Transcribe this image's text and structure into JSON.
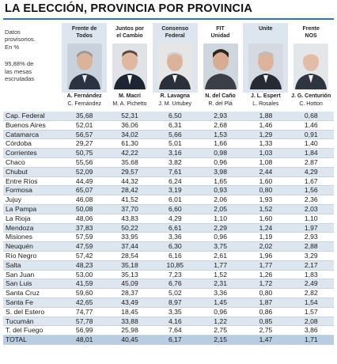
{
  "title": "LA ELECCIÓN, PROVINCIA POR PROVINCIA",
  "intro": {
    "line1": "Datos",
    "line2": "provisorios.",
    "line3": "En %",
    "line4": "95,88% de",
    "line5": "las mesas",
    "line6": "escrutadas"
  },
  "parties": [
    {
      "line1": "Frente de",
      "line2": "Todos",
      "president": "A. Fernández",
      "vice": "C. Fernández",
      "photo": "portrait-fernandez"
    },
    {
      "line1": "Juntos por",
      "line2": "el Cambio",
      "president": "M. Macri",
      "vice": "M. A. Pichetto",
      "photo": "portrait-macri"
    },
    {
      "line1": "Consenso",
      "line2": "Federal",
      "president": "R. Lavagna",
      "vice": "J. M. Urtubey",
      "photo": "portrait-lavagna"
    },
    {
      "line1": "FIT",
      "line2": "Unidad",
      "president": "N. del Caño",
      "vice": "R. del Plá",
      "photo": "portrait-delcano"
    },
    {
      "line1": "Unite",
      "line2": "",
      "president": "J. L. Espert",
      "vice": "L. Rosales",
      "photo": "portrait-espert"
    },
    {
      "line1": "Frente",
      "line2": "NOS",
      "president": "J. G. Centurión",
      "vice": "C. Hotton",
      "photo": "portrait-centurion"
    }
  ],
  "rows": [
    {
      "province": "Cap. Federal",
      "values": [
        "35,68",
        "52,31",
        "6,50",
        "2,93",
        "1,88",
        "0,68"
      ]
    },
    {
      "province": "Buenos Aires",
      "values": [
        "52,01",
        "36,06",
        "6,31",
        "2,68",
        "1,46",
        "1,46"
      ]
    },
    {
      "province": "Catamarca",
      "values": [
        "56,57",
        "34,02",
        "5,66",
        "1,53",
        "1,29",
        "0,91"
      ]
    },
    {
      "province": "Córdoba",
      "values": [
        "29,27",
        "61,30",
        "5,01",
        "1,66",
        "1,33",
        "1,40"
      ]
    },
    {
      "province": "Corrientes",
      "values": [
        "50,75",
        "42,22",
        "3,16",
        "0,98",
        "1,03",
        "1,84"
      ]
    },
    {
      "province": "Chaco",
      "values": [
        "55,56",
        "35,68",
        "3,82",
        "0,96",
        "1,08",
        "2,87"
      ]
    },
    {
      "province": "Chubut",
      "values": [
        "52,09",
        "29,57",
        "7,61",
        "3,98",
        "2,44",
        "4,29"
      ]
    },
    {
      "province": "Entre Ríos",
      "values": [
        "44,49",
        "44,32",
        "6,24",
        "1,65",
        "1,60",
        "1,67"
      ]
    },
    {
      "province": "Formosa",
      "values": [
        "65,07",
        "28,42",
        "3,19",
        "0,93",
        "0,80",
        "1,56"
      ]
    },
    {
      "province": "Jujuy",
      "values": [
        "46,08",
        "41,52",
        "6,01",
        "2,06",
        "1,93",
        "2,36"
      ]
    },
    {
      "province": "La Pampa",
      "values": [
        "50,08",
        "37,70",
        "6,60",
        "2,05",
        "1,52",
        "2,03"
      ]
    },
    {
      "province": "La Rioja",
      "values": [
        "48,06",
        "43,83",
        "4,29",
        "1,10",
        "1,60",
        "1,10"
      ]
    },
    {
      "province": "Mendoza",
      "values": [
        "37,83",
        "50,22",
        "6,61",
        "2,29",
        "1,24",
        "1,97"
      ]
    },
    {
      "province": "Misiones",
      "values": [
        "57,59",
        "33,95",
        "3,36",
        "0,96",
        "1,19",
        "2,93"
      ]
    },
    {
      "province": "Neuquén",
      "values": [
        "47,59",
        "37,44",
        "6,30",
        "3,75",
        "2,02",
        "2,88"
      ]
    },
    {
      "province": "Río Negro",
      "values": [
        "57,42",
        "28,54",
        "6,16",
        "2,61",
        "1,96",
        "3,29"
      ]
    },
    {
      "province": "Salta",
      "values": [
        "48,23",
        "35,18",
        "10,85",
        "1,77",
        "1,77",
        "2,17"
      ]
    },
    {
      "province": "San Juan",
      "values": [
        "53,00",
        "35,13",
        "7,23",
        "1,52",
        "1,26",
        "1,83"
      ]
    },
    {
      "province": "San Luis",
      "values": [
        "41,59",
        "45,09",
        "6,76",
        "2,31",
        "1,72",
        "2,49"
      ]
    },
    {
      "province": "Santa Cruz",
      "values": [
        "59,60",
        "28,37",
        "5,02",
        "3,36",
        "0,80",
        "2,82"
      ]
    },
    {
      "province": "Santa Fe",
      "values": [
        "42,65",
        "43,49",
        "8,97",
        "1,45",
        "1,87",
        "1,54"
      ]
    },
    {
      "province": "S. del Estero",
      "values": [
        "74,77",
        "18,45",
        "3,35",
        "0,96",
        "0,86",
        "1,57"
      ]
    },
    {
      "province": "Tucumán",
      "values": [
        "57,78",
        "33,88",
        "4,16",
        "1,22",
        "0,85",
        "2,08"
      ]
    },
    {
      "province": "T. del Fuego",
      "values": [
        "56,99",
        "25,98",
        "7,64",
        "2,75",
        "2,75",
        "3,86"
      ]
    },
    {
      "province": "TOTAL",
      "values": [
        "48,01",
        "40,45",
        "6,17",
        "2,15",
        "1,47",
        "1,71"
      ]
    }
  ],
  "colors": {
    "accent": "#3a6fb0",
    "row_alt": "#dde6ef",
    "total": "#b9cde0"
  }
}
